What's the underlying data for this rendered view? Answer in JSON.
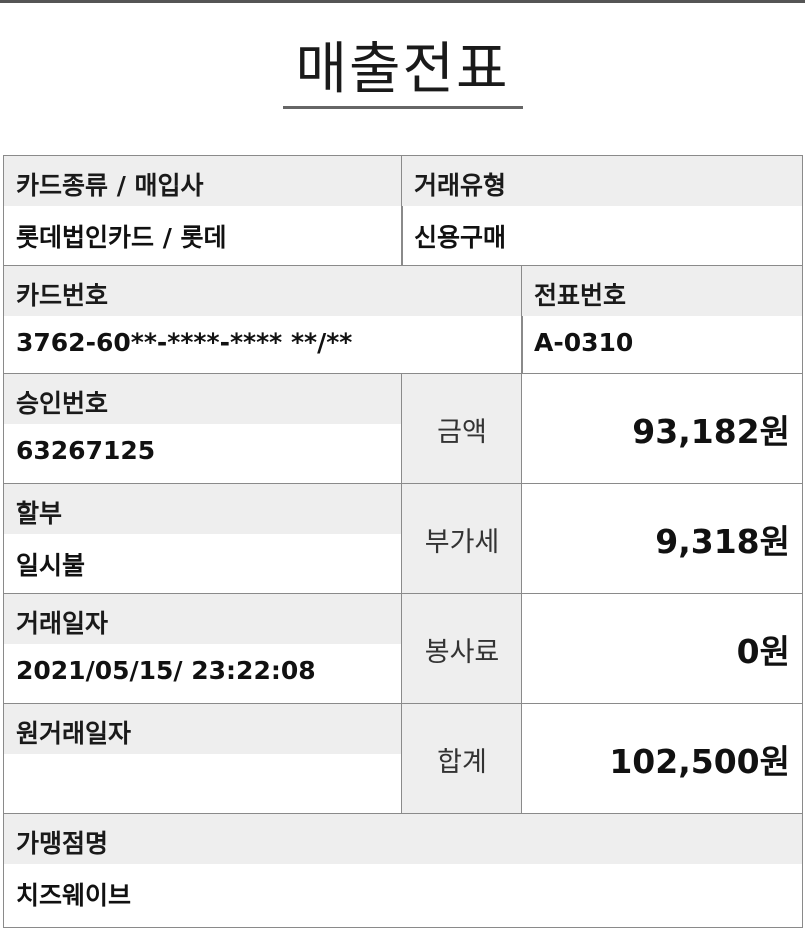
{
  "title": "매출전표",
  "card_type": {
    "label": "카드종류 / 매입사",
    "value": "롯데법인카드 / 롯데"
  },
  "transaction_type": {
    "label": "거래유형",
    "value": "신용구매"
  },
  "card_number": {
    "label": "카드번호",
    "value": "3762-60**-****-**** **/**"
  },
  "slip_number": {
    "label": "전표번호",
    "value": "A-0310"
  },
  "approval_number": {
    "label": "승인번호",
    "value": "63267125"
  },
  "installment": {
    "label": "할부",
    "value": "일시불"
  },
  "transaction_date": {
    "label": "거래일자",
    "value": "2021/05/15/ 23:22:08"
  },
  "original_transaction_date": {
    "label": "원거래일자",
    "value": ""
  },
  "merchant_name": {
    "label": "가맹점명",
    "value": "치즈웨이브"
  },
  "amounts": {
    "amount": {
      "label": "금액",
      "value": "93,182원"
    },
    "vat": {
      "label": "부가세",
      "value": "9,318원"
    },
    "service_fee": {
      "label": "봉사료",
      "value": "0원"
    },
    "total": {
      "label": "합계",
      "value": "102,500원"
    }
  }
}
